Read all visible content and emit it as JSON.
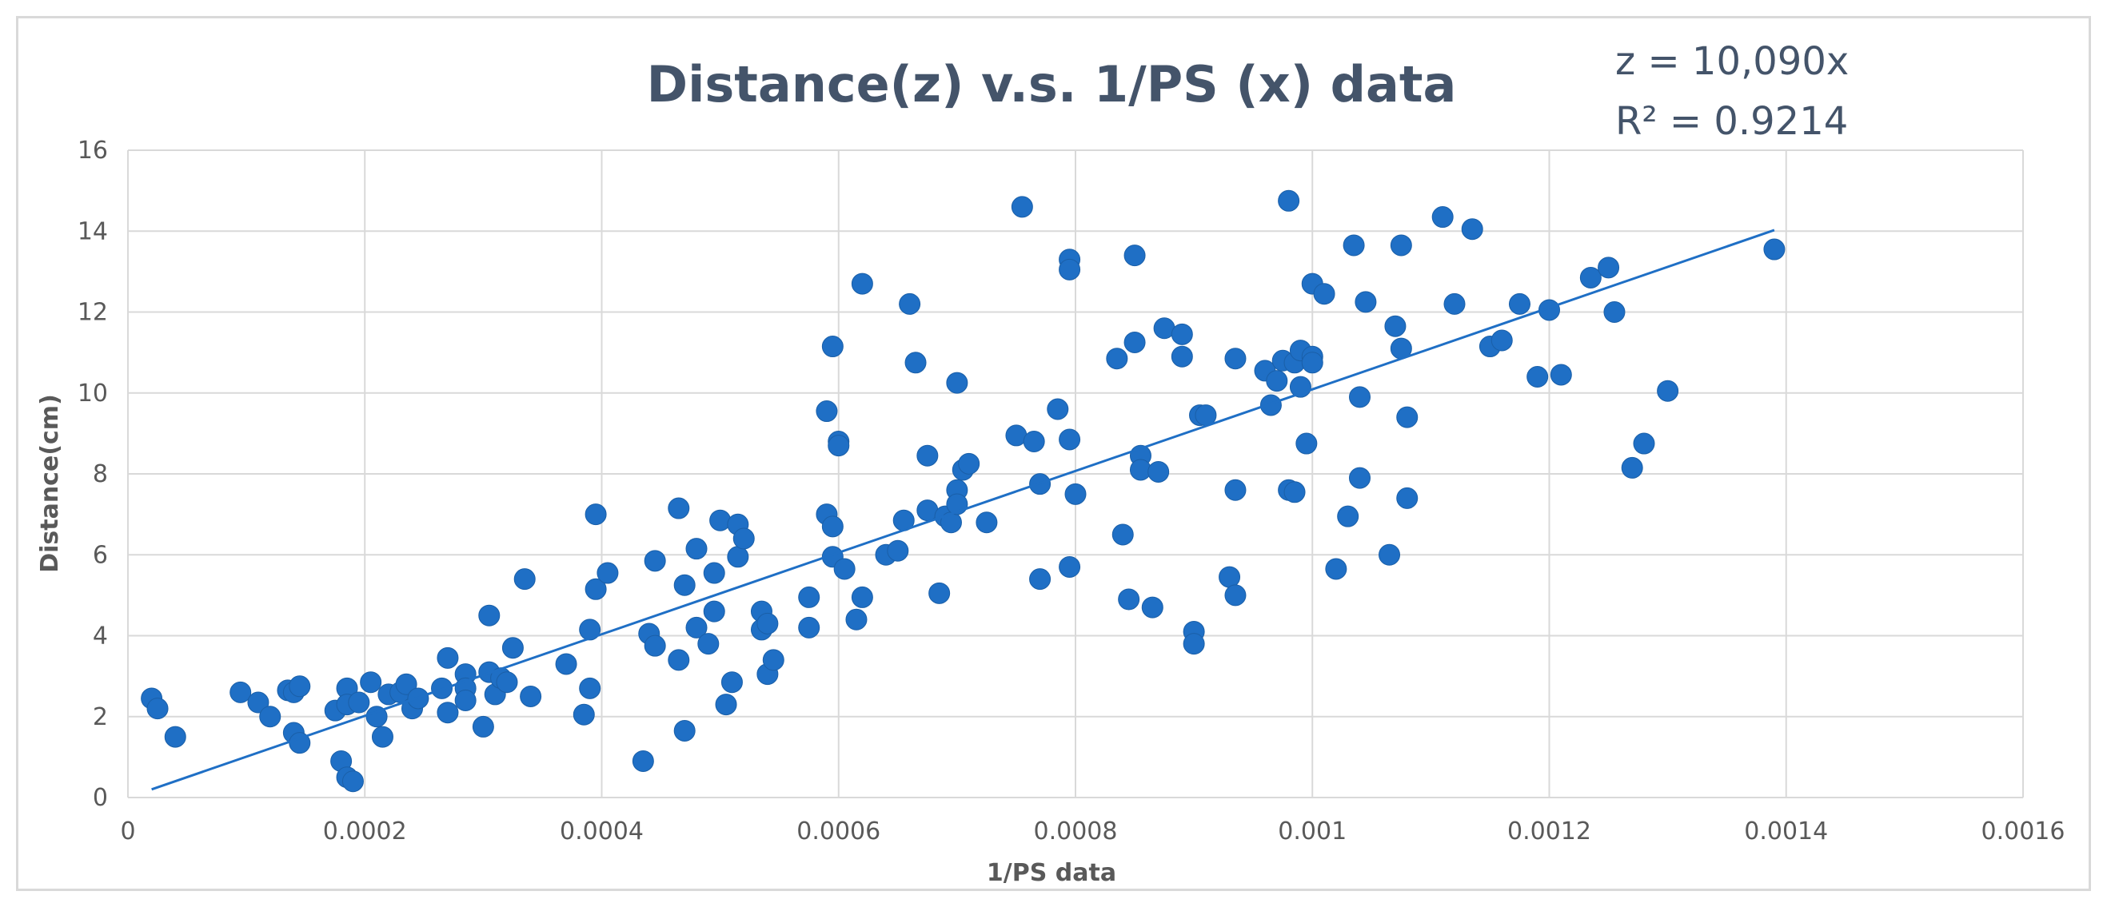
{
  "chart_data": {
    "type": "scatter",
    "title": "Distance(z) v.s. 1/PS (x) data",
    "xlabel": "1/PS data",
    "ylabel": "Distance(cm)",
    "xlim": [
      0,
      0.0016
    ],
    "ylim": [
      0,
      16
    ],
    "x_ticks": [
      "0",
      "0.0002",
      "0.0004",
      "0.0006",
      "0.0008",
      "0.001",
      "0.0012",
      "0.0014",
      "0.0016"
    ],
    "y_ticks": [
      "0",
      "2",
      "4",
      "6",
      "8",
      "10",
      "12",
      "14",
      "16"
    ],
    "grid": true,
    "legend": "none",
    "trendline": {
      "type": "linear",
      "equation": "z = 10,090x",
      "r_squared": "R² = 0.9214",
      "slope": 10090,
      "x_range": [
        2e-05,
        0.00139
      ]
    },
    "colors": {
      "marker": "#1f6fc5",
      "trendline": "#1f6fc5",
      "title": "#44546a",
      "grid": "#d9d9d9",
      "tick": "#595959"
    },
    "series": [
      {
        "points": [
          [
            2e-05,
            2.45
          ],
          [
            2.5e-05,
            2.2
          ],
          [
            4e-05,
            1.5
          ],
          [
            9.5e-05,
            2.6
          ],
          [
            0.00011,
            2.35
          ],
          [
            0.00012,
            2.0
          ],
          [
            0.000135,
            2.65
          ],
          [
            0.00014,
            1.6
          ],
          [
            0.00014,
            2.6
          ],
          [
            0.000145,
            2.75
          ],
          [
            0.000145,
            1.35
          ],
          [
            0.000175,
            2.15
          ],
          [
            0.00018,
            0.9
          ],
          [
            0.000185,
            2.7
          ],
          [
            0.000185,
            0.5
          ],
          [
            0.000185,
            2.3
          ],
          [
            0.00019,
            0.4
          ],
          [
            0.000195,
            2.35
          ],
          [
            0.000205,
            2.85
          ],
          [
            0.00021,
            2.0
          ],
          [
            0.000215,
            1.5
          ],
          [
            0.00022,
            2.55
          ],
          [
            0.00023,
            2.6
          ],
          [
            0.000235,
            2.8
          ],
          [
            0.00024,
            2.2
          ],
          [
            0.000245,
            2.45
          ],
          [
            0.000265,
            2.7
          ],
          [
            0.00027,
            3.45
          ],
          [
            0.00027,
            2.1
          ],
          [
            0.000285,
            3.05
          ],
          [
            0.000285,
            2.7
          ],
          [
            0.000285,
            2.4
          ],
          [
            0.0003,
            1.75
          ],
          [
            0.000305,
            3.1
          ],
          [
            0.000305,
            4.5
          ],
          [
            0.00031,
            2.55
          ],
          [
            0.000315,
            2.95
          ],
          [
            0.00032,
            2.85
          ],
          [
            0.000325,
            3.7
          ],
          [
            0.000335,
            5.4
          ],
          [
            0.00034,
            2.5
          ],
          [
            0.00037,
            3.3
          ],
          [
            0.000385,
            2.05
          ],
          [
            0.00039,
            2.7
          ],
          [
            0.00039,
            4.15
          ],
          [
            0.000395,
            7.0
          ],
          [
            0.000395,
            5.15
          ],
          [
            0.000405,
            5.55
          ],
          [
            0.000435,
            0.9
          ],
          [
            0.00044,
            4.05
          ],
          [
            0.000445,
            3.75
          ],
          [
            0.000445,
            5.85
          ],
          [
            0.000465,
            3.4
          ],
          [
            0.000465,
            7.15
          ],
          [
            0.00047,
            5.25
          ],
          [
            0.00047,
            1.65
          ],
          [
            0.00048,
            6.15
          ],
          [
            0.00048,
            4.2
          ],
          [
            0.00049,
            3.8
          ],
          [
            0.000495,
            5.55
          ],
          [
            0.000495,
            4.6
          ],
          [
            0.0005,
            6.85
          ],
          [
            0.000505,
            2.3
          ],
          [
            0.00051,
            2.85
          ],
          [
            0.000515,
            6.75
          ],
          [
            0.000515,
            5.95
          ],
          [
            0.00052,
            6.4
          ],
          [
            0.000535,
            4.6
          ],
          [
            0.000535,
            4.15
          ],
          [
            0.00054,
            3.05
          ],
          [
            0.00054,
            4.3
          ],
          [
            0.000545,
            3.4
          ],
          [
            0.000575,
            4.95
          ],
          [
            0.000575,
            4.2
          ],
          [
            0.00059,
            7.0
          ],
          [
            0.00059,
            9.55
          ],
          [
            0.000595,
            11.15
          ],
          [
            0.000595,
            5.95
          ],
          [
            0.000595,
            6.7
          ],
          [
            0.0006,
            8.8
          ],
          [
            0.0006,
            8.7
          ],
          [
            0.000605,
            5.65
          ],
          [
            0.000615,
            4.4
          ],
          [
            0.00062,
            12.7
          ],
          [
            0.00062,
            4.95
          ],
          [
            0.00064,
            6.0
          ],
          [
            0.00065,
            6.1
          ],
          [
            0.000655,
            6.85
          ],
          [
            0.00066,
            12.2
          ],
          [
            0.000665,
            10.75
          ],
          [
            0.000675,
            7.1
          ],
          [
            0.000675,
            8.45
          ],
          [
            0.000685,
            5.05
          ],
          [
            0.00069,
            6.95
          ],
          [
            0.000695,
            6.8
          ],
          [
            0.0007,
            7.6
          ],
          [
            0.0007,
            7.25
          ],
          [
            0.0007,
            10.25
          ],
          [
            0.000705,
            8.1
          ],
          [
            0.00071,
            8.25
          ],
          [
            0.000725,
            6.8
          ],
          [
            0.00075,
            8.95
          ],
          [
            0.000755,
            14.6
          ],
          [
            0.000765,
            8.8
          ],
          [
            0.00077,
            7.75
          ],
          [
            0.00077,
            5.4
          ],
          [
            0.000785,
            9.6
          ],
          [
            0.000795,
            13.3
          ],
          [
            0.000795,
            13.05
          ],
          [
            0.000795,
            5.7
          ],
          [
            0.000795,
            8.85
          ],
          [
            0.0008,
            7.5
          ],
          [
            0.000835,
            10.85
          ],
          [
            0.00084,
            6.5
          ],
          [
            0.000845,
            4.9
          ],
          [
            0.00085,
            13.4
          ],
          [
            0.00085,
            11.25
          ],
          [
            0.000855,
            8.45
          ],
          [
            0.000855,
            8.1
          ],
          [
            0.000865,
            4.7
          ],
          [
            0.00087,
            8.05
          ],
          [
            0.000875,
            11.6
          ],
          [
            0.00089,
            11.45
          ],
          [
            0.00089,
            10.9
          ],
          [
            0.0009,
            4.1
          ],
          [
            0.0009,
            3.8
          ],
          [
            0.000905,
            9.45
          ],
          [
            0.00091,
            9.45
          ],
          [
            0.00093,
            5.45
          ],
          [
            0.000935,
            5.0
          ],
          [
            0.000935,
            7.6
          ],
          [
            0.000935,
            10.85
          ],
          [
            0.00096,
            10.55
          ],
          [
            0.000965,
            9.7
          ],
          [
            0.00097,
            10.3
          ],
          [
            0.000975,
            10.8
          ],
          [
            0.00098,
            14.75
          ],
          [
            0.00098,
            7.6
          ],
          [
            0.000985,
            7.55
          ],
          [
            0.000985,
            10.75
          ],
          [
            0.00099,
            11.05
          ],
          [
            0.00099,
            10.15
          ],
          [
            0.000995,
            8.75
          ],
          [
            0.001,
            10.9
          ],
          [
            0.001,
            12.7
          ],
          [
            0.001,
            10.75
          ],
          [
            0.00101,
            12.45
          ],
          [
            0.00102,
            5.65
          ],
          [
            0.00103,
            6.95
          ],
          [
            0.001035,
            13.65
          ],
          [
            0.00104,
            7.9
          ],
          [
            0.00104,
            9.9
          ],
          [
            0.001045,
            12.25
          ],
          [
            0.001065,
            6.0
          ],
          [
            0.00107,
            11.65
          ],
          [
            0.001075,
            13.65
          ],
          [
            0.001075,
            11.1
          ],
          [
            0.00108,
            7.4
          ],
          [
            0.00108,
            9.4
          ],
          [
            0.00111,
            14.35
          ],
          [
            0.00112,
            12.2
          ],
          [
            0.001135,
            14.05
          ],
          [
            0.00115,
            11.15
          ],
          [
            0.00116,
            11.3
          ],
          [
            0.001175,
            12.2
          ],
          [
            0.00119,
            10.4
          ],
          [
            0.0012,
            12.05
          ],
          [
            0.00121,
            10.45
          ],
          [
            0.001235,
            12.85
          ],
          [
            0.00125,
            13.1
          ],
          [
            0.001255,
            12.0
          ],
          [
            0.00127,
            8.15
          ],
          [
            0.00128,
            8.75
          ],
          [
            0.0013,
            10.05
          ],
          [
            0.00139,
            13.55
          ]
        ]
      }
    ]
  }
}
